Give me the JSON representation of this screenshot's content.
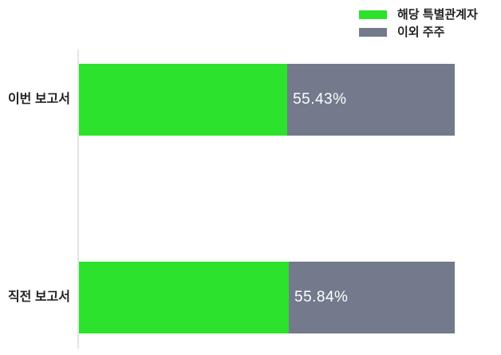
{
  "colors": {
    "series_green": "#2ce22c",
    "series_gray": "#727a8c",
    "axis_line": "#e4e4e4",
    "category_text": "#222222",
    "value_text": "#ffffff",
    "background": "#ffffff"
  },
  "legend": {
    "items": [
      {
        "label": "해당 특별관계자",
        "color": "#2ce22c"
      },
      {
        "label": "이외 주주",
        "color": "#727a8c"
      }
    ]
  },
  "chart_data": {
    "type": "bar",
    "orientation": "horizontal",
    "stacked": true,
    "categories": [
      "이번 보고서",
      "직전 보고서"
    ],
    "series": [
      {
        "name": "해당 특별관계자",
        "color": "#2ce22c",
        "values": [
          55.43,
          55.84
        ]
      },
      {
        "name": "이외 주주",
        "color": "#727a8c",
        "values": [
          44.57,
          44.16
        ]
      }
    ],
    "value_labels": [
      "55.43%",
      "55.84%"
    ],
    "xlim": [
      0,
      100
    ],
    "grid": false,
    "legend_position": "top-right"
  }
}
